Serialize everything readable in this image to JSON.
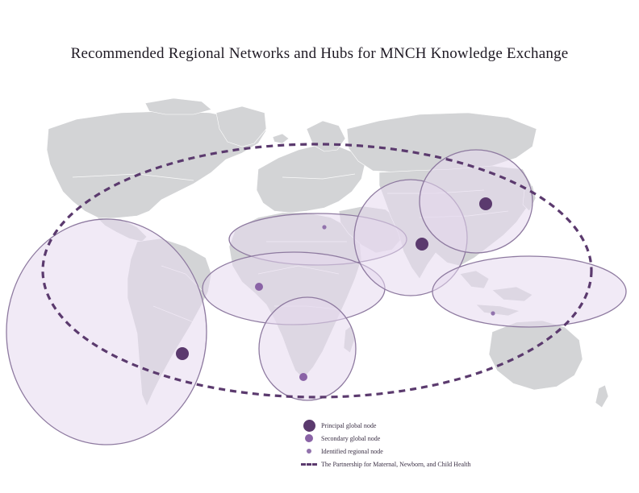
{
  "title": "Recommended Regional Networks and Hubs for MNCH Knowledge Exchange",
  "colors": {
    "land": "#d3d4d6",
    "region_fill": "#e6d9ee",
    "region_stroke": "#8e7aa0",
    "principal_node": "#5b3a6e",
    "secondary_node": "#8a63a6",
    "regional_node": "#9273ad",
    "partnership_line": "#5b3a6e"
  },
  "regions": [
    "Americas",
    "North Africa and Middle East",
    "West Africa",
    "Southern Africa",
    "South Asia",
    "East Asia",
    "Southeast Asia and Pacific"
  ],
  "nodes": [
    {
      "location": "Brazil",
      "type": "principal"
    },
    {
      "location": "India",
      "type": "principal"
    },
    {
      "location": "China",
      "type": "principal"
    },
    {
      "location": "South Africa",
      "type": "secondary"
    },
    {
      "location": "West Africa",
      "type": "secondary"
    },
    {
      "location": "Egypt",
      "type": "regional"
    },
    {
      "location": "Indonesia",
      "type": "regional"
    }
  ],
  "legend": {
    "principal": "Principal global node",
    "secondary": "Secondary global node",
    "regional": "Identified regional node",
    "partnership": "The Partnership for Maternal, Newborn, and Child Health"
  }
}
